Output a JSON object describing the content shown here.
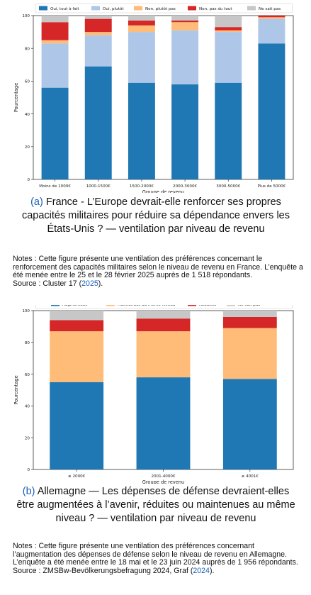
{
  "chart_data": [
    {
      "type": "bar",
      "stacked": true,
      "ylabel": "Pourcentage",
      "xlabel": "Groupe de revenu",
      "ylim": [
        0,
        100
      ],
      "yticks": [
        0,
        20,
        40,
        60,
        80,
        100
      ],
      "grid": false,
      "legend_position": "top",
      "categories": [
        "Moins de 1000€",
        "1000-1500€",
        "1500-2000€",
        "2000-3000€",
        "3000-5000€",
        "Plus de 5000€"
      ],
      "series": [
        {
          "name": "Oui, tout à fait",
          "color": "#1f77b4",
          "values": [
            56,
            69,
            59,
            58,
            59,
            83
          ]
        },
        {
          "name": "Oui, plutôt",
          "color": "#aec7e8",
          "values": [
            27,
            19,
            31,
            33,
            31,
            15
          ]
        },
        {
          "name": "Non, plutôt pas",
          "color": "#ffbb78",
          "values": [
            2,
            2,
            4,
            5,
            1,
            1
          ]
        },
        {
          "name": "Non, pas du tout",
          "color": "#d62728",
          "values": [
            11,
            8,
            3,
            1,
            2,
            1
          ]
        },
        {
          "name": "Ne sait pas",
          "color": "#c7c7c7",
          "values": [
            4,
            2,
            3,
            3,
            7,
            0
          ]
        }
      ]
    },
    {
      "type": "bar",
      "stacked": true,
      "ylabel": "Pourcentage",
      "xlabel": "Groupe de revenu",
      "ylim": [
        0,
        100
      ],
      "yticks": [
        0,
        20,
        40,
        60,
        80,
        100
      ],
      "grid": false,
      "legend_position": "top",
      "categories": [
        "≤ 2000€",
        "2001-4000€",
        "≥ 4001€"
      ],
      "series": [
        {
          "name": "Augmentées",
          "color": "#1f77b4",
          "values": [
            55,
            58,
            57
          ]
        },
        {
          "name": "Maintenues au même niveau",
          "color": "#ffbb78",
          "values": [
            32,
            29,
            32
          ]
        },
        {
          "name": "Réduites",
          "color": "#d62728",
          "values": [
            7,
            8,
            7
          ]
        },
        {
          "name": "Ne sait pas",
          "color": "#c7c7c7",
          "values": [
            6,
            5,
            4
          ]
        }
      ]
    }
  ],
  "captions": {
    "a": {
      "label": "(a)",
      "text": "France - L’Europe devrait-elle renforcer ses propres capacités militaires pour réduire sa dépendance envers les États-Unis ? — ventilation par niveau de revenu"
    },
    "b": {
      "label": "(b)",
      "text": "Allemagne — Les dépenses de défense devraient-elles être augmentées à l’avenir, réduites ou maintenues au même niveau ? — ventilation par niveau de revenu"
    }
  },
  "notes": {
    "a": {
      "text": "Notes : Cette figure présente une ventilation des préférences concernant le renforcement des capacités militaires selon le niveau de revenu en France. L’enquête a été menée entre le 25 et le 28 février 2025 auprès de 1 518 répondants.",
      "source_prefix": "Source : Cluster 17 (",
      "source_year": "2025",
      "source_suffix": ")."
    },
    "b": {
      "text": "Notes : Cette figure présente une ventilation des préférences concernant l’augmentation des dépenses de défense selon le niveau de revenu en Allemagne. L’enquête a été menée entre le 18 mai et le 23 juin 2024 auprès de 1 956 répondants.",
      "source_prefix": "Source : ZMSBw-Bevölkerungsbefragung 2024, Graf (",
      "source_year": "2024",
      "source_suffix": ")."
    }
  }
}
